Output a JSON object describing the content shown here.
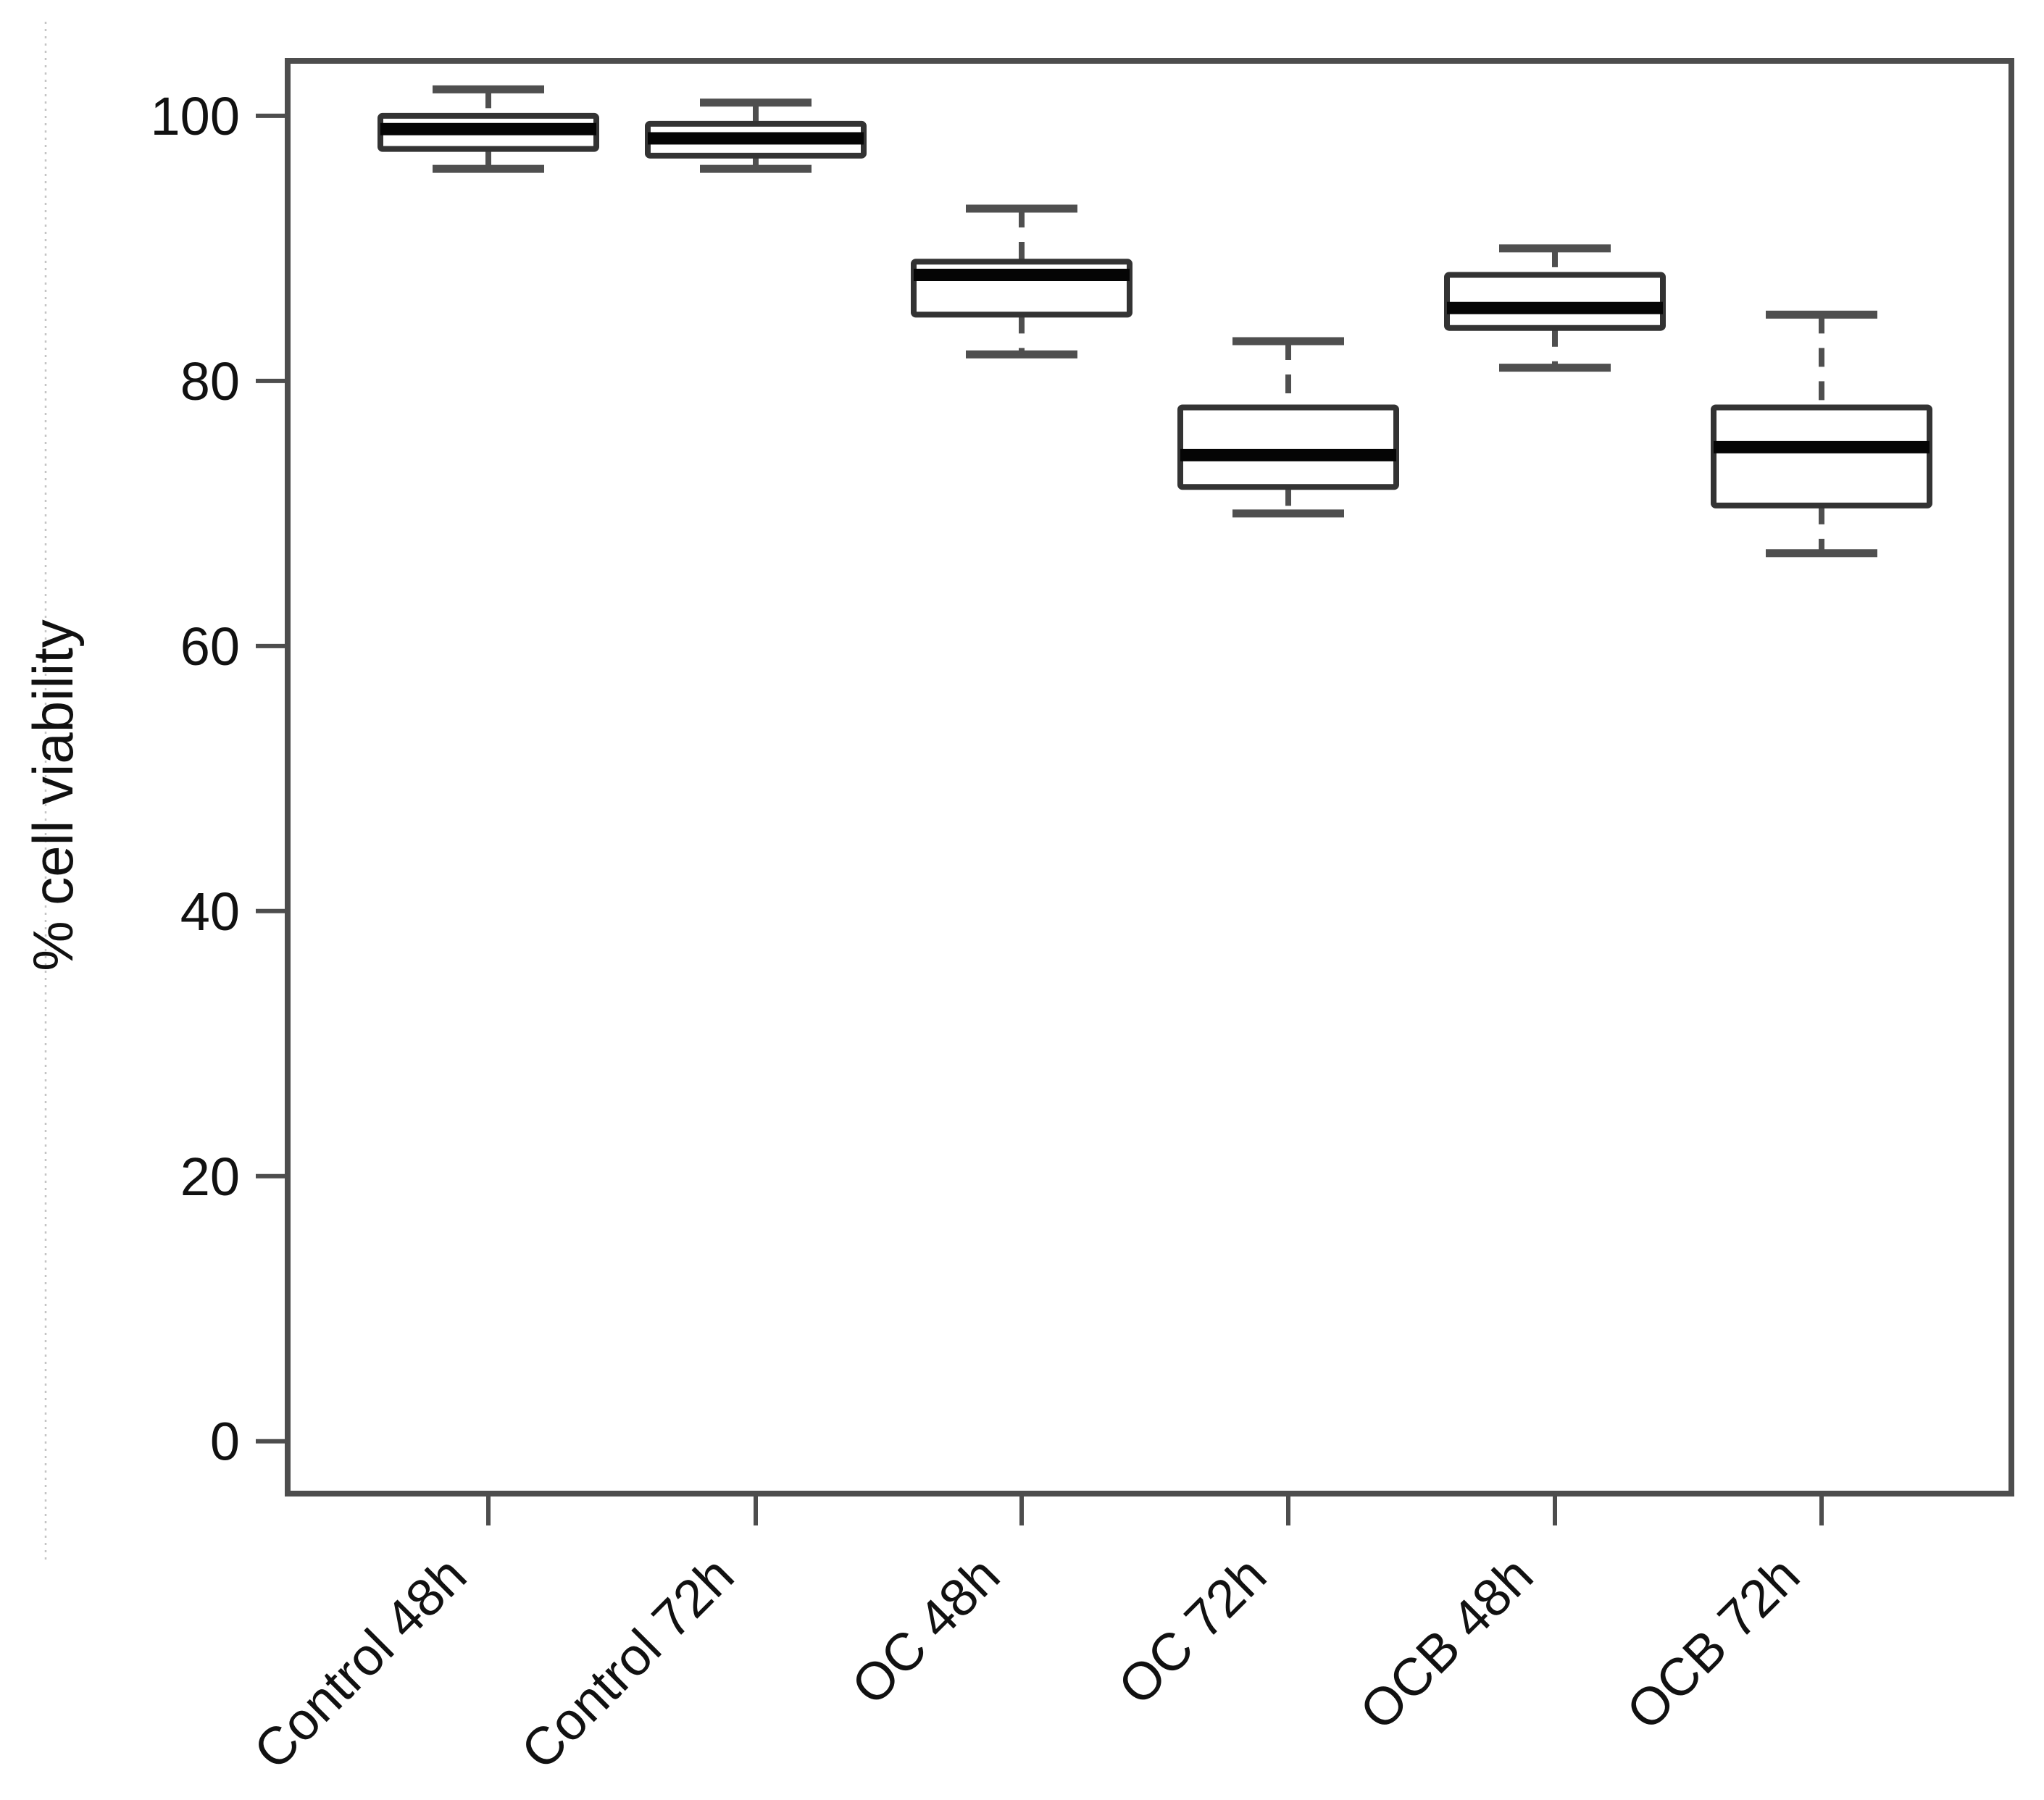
{
  "figure": {
    "background": "#ffffff",
    "frame_color": "#4d4d4d",
    "box_border_color": "#333333",
    "median_color": "#050505",
    "whisker_color": "#4f4f4f",
    "text_color": "#111111",
    "artifact_line_color": "#c4c4c4"
  },
  "chart_data": {
    "type": "boxplot",
    "title": "",
    "xlabel": "",
    "ylabel": "% cell viability",
    "categories": [
      "Control 48h",
      "Control 72h",
      "OC 48h",
      "OC 72h",
      "OCB 48h",
      "OCB 72h"
    ],
    "yticks": [
      0,
      20,
      40,
      60,
      80,
      100
    ],
    "ylim": [
      -3.95,
      104.15
    ],
    "grid": false,
    "legend": "none",
    "whisker_style": "dashed",
    "series": [
      {
        "name": "Control 48h",
        "whisker_low": 96,
        "q1": 97.5,
        "median": 99,
        "q3": 100,
        "whisker_high": 102
      },
      {
        "name": "Control 72h",
        "whisker_low": 96,
        "q1": 97,
        "median": 98.3,
        "q3": 99.4,
        "whisker_high": 101
      },
      {
        "name": "OC 48h",
        "whisker_low": 82,
        "q1": 85,
        "median": 88,
        "q3": 89,
        "whisker_high": 93
      },
      {
        "name": "OC 72h",
        "whisker_low": 70,
        "q1": 72,
        "median": 74.4,
        "q3": 78,
        "whisker_high": 83
      },
      {
        "name": "OCB 48h",
        "whisker_low": 81,
        "q1": 84,
        "median": 85.5,
        "q3": 88,
        "whisker_high": 90
      },
      {
        "name": "OCB 72h",
        "whisker_low": 67,
        "q1": 70.6,
        "median": 75,
        "q3": 78,
        "whisker_high": 85
      }
    ]
  }
}
